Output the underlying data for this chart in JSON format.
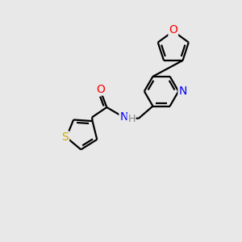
{
  "background_color": "#e8e8e8",
  "bond_color": "#000000",
  "atom_colors": {
    "O": "#ff0000",
    "N_pyridine": "#0000ff",
    "N_amide": "#0000ff",
    "S": "#ccaa00",
    "C": "#000000",
    "H": "#888888"
  },
  "font_size_atoms": 10,
  "bond_width": 1.6,
  "xlim": [
    0,
    10
  ],
  "ylim": [
    0,
    10
  ]
}
